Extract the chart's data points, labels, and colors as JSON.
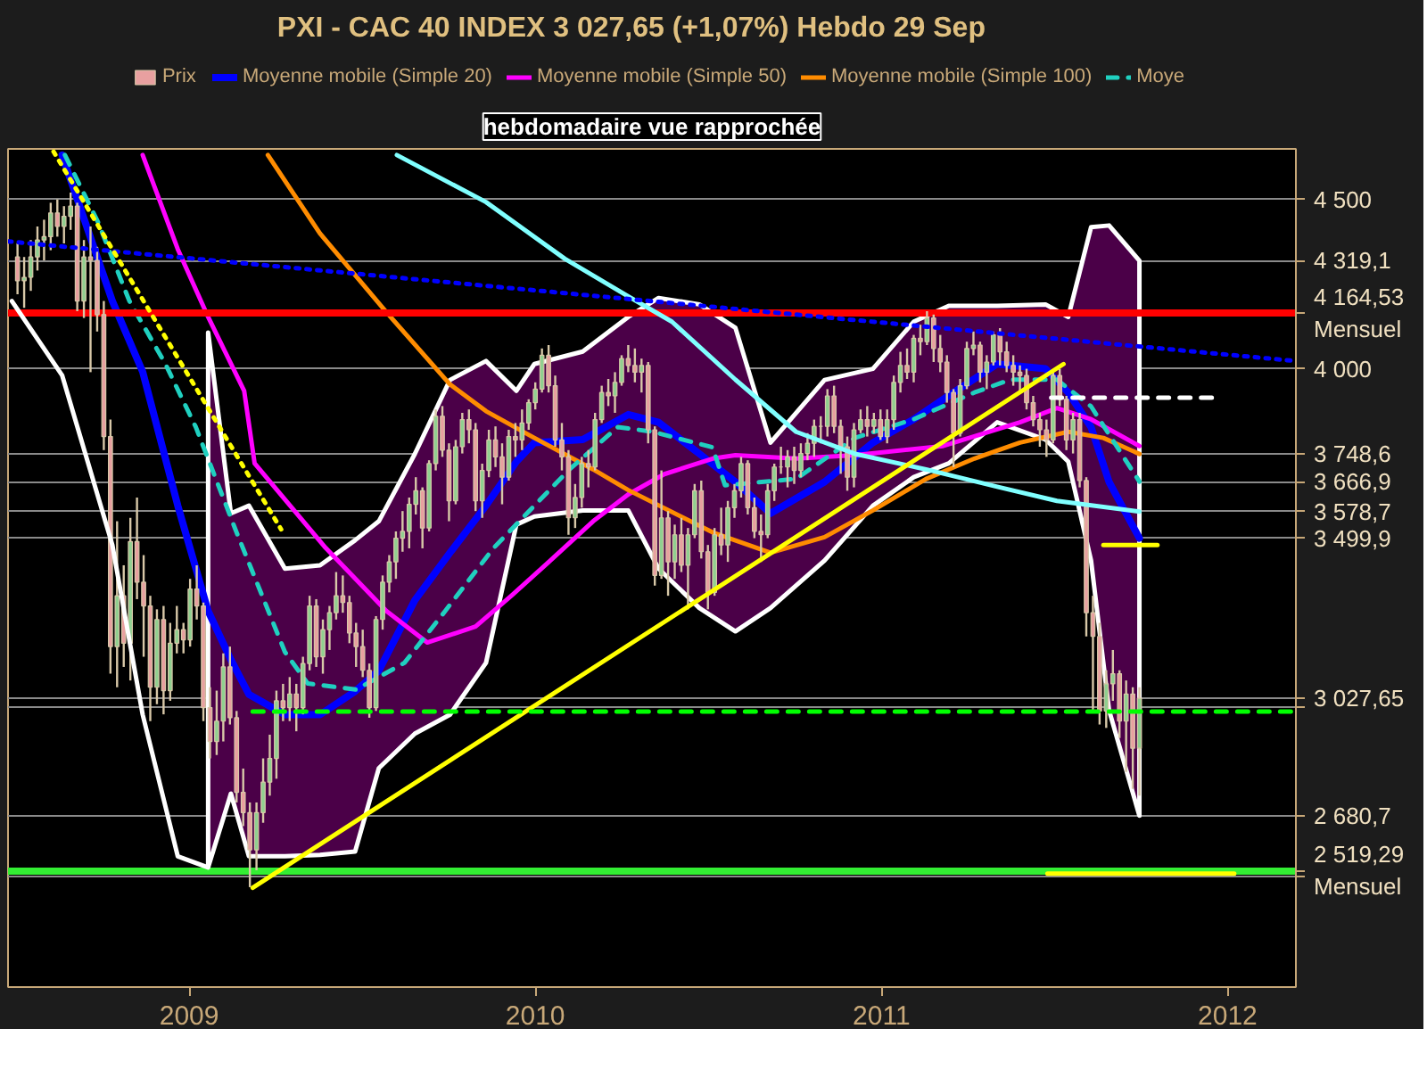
{
  "chart_data": {
    "type": "candlestick",
    "title": "PXI - CAC 40 INDEX    3 027,65 (+1,07%)    Hebdo  29 Sep",
    "annotations": [
      "hebdomadaire vue rapprochée"
    ],
    "xlim": [
      "2008-06-24",
      "2012-03-13"
    ],
    "xticks": [
      "2009",
      "2010",
      "2011",
      "2012"
    ],
    "ylim": [
      2175,
      4649
    ],
    "yticks": [
      {
        "value": 4500,
        "label": "4 500"
      },
      {
        "value": 4319.1,
        "label": "4 319,1"
      },
      {
        "value": 4000,
        "label": "4 000"
      },
      {
        "value": 3748.6,
        "label": "3 748,6"
      },
      {
        "value": 3666.9,
        "label": "3 666,9"
      },
      {
        "value": 3578.7,
        "label": "3 578,7"
      },
      {
        "value": 3500,
        "label": null
      },
      {
        "value": 3499.9,
        "label": "3 499,9"
      },
      {
        "value": 3027.65,
        "label": "3 027,65"
      },
      {
        "value": 3000,
        "label": null
      },
      {
        "value": 2680.7,
        "label": "2 680,7"
      },
      {
        "value": 2500,
        "label": null
      }
    ],
    "grid": "y",
    "legend": "top",
    "ref_lines": [
      {
        "axis": "y",
        "value": 4164.53,
        "label": "4 164,53 Mensuel",
        "color": "#ff0000"
      },
      {
        "axis": "y",
        "value": 2519.29,
        "label": "2 519,29 Mensuel",
        "color": "#33ee33"
      }
    ],
    "series": [
      {
        "name": "Prix",
        "x": [
          "2008-07-04",
          "2008-07-11",
          "2008-07-18",
          "2008-07-25",
          "2008-08-01",
          "2008-08-08",
          "2008-08-15",
          "2008-08-22",
          "2008-08-29",
          "2008-09-05",
          "2008-09-12",
          "2008-09-19",
          "2008-09-26",
          "2008-10-03",
          "2008-10-10",
          "2008-10-17",
          "2008-10-24",
          "2008-10-31",
          "2008-11-07",
          "2008-11-14",
          "2008-11-21",
          "2008-11-28",
          "2008-12-05",
          "2008-12-12",
          "2008-12-19",
          "2008-12-26",
          "2009-01-02",
          "2009-01-09",
          "2009-01-16",
          "2009-01-23",
          "2009-01-30",
          "2009-02-06",
          "2009-02-13",
          "2009-02-20",
          "2009-02-27",
          "2009-03-06",
          "2009-03-13",
          "2009-03-20",
          "2009-03-27",
          "2009-04-03",
          "2009-04-10",
          "2009-04-17",
          "2009-04-24",
          "2009-05-01",
          "2009-05-08",
          "2009-05-15",
          "2009-05-22",
          "2009-05-29",
          "2009-06-05",
          "2009-06-12",
          "2009-06-19",
          "2009-06-26",
          "2009-07-03",
          "2009-07-10",
          "2009-07-17",
          "2009-07-24",
          "2009-07-31",
          "2009-08-07",
          "2009-08-14",
          "2009-08-21",
          "2009-08-28",
          "2009-09-04",
          "2009-09-11",
          "2009-09-18",
          "2009-09-25",
          "2009-10-02",
          "2009-10-09",
          "2009-10-16",
          "2009-10-23",
          "2009-10-30",
          "2009-11-06",
          "2009-11-13",
          "2009-11-20",
          "2009-11-27",
          "2009-12-04",
          "2009-12-11",
          "2009-12-18",
          "2009-12-25",
          "2010-01-01",
          "2010-01-08",
          "2010-01-15",
          "2010-01-22",
          "2010-01-29",
          "2010-02-05",
          "2010-02-12",
          "2010-02-19",
          "2010-02-26",
          "2010-03-05",
          "2010-03-12",
          "2010-03-19",
          "2010-03-26",
          "2010-04-02",
          "2010-04-09",
          "2010-04-16",
          "2010-04-23",
          "2010-04-30",
          "2010-05-07",
          "2010-05-14",
          "2010-05-21",
          "2010-05-28",
          "2010-06-04",
          "2010-06-11",
          "2010-06-18",
          "2010-06-25",
          "2010-07-02",
          "2010-07-09",
          "2010-07-16",
          "2010-07-23",
          "2010-07-30",
          "2010-08-06",
          "2010-08-13",
          "2010-08-20",
          "2010-08-27",
          "2010-09-03",
          "2010-09-10",
          "2010-09-17",
          "2010-09-24",
          "2010-10-01",
          "2010-10-08",
          "2010-10-15",
          "2010-10-22",
          "2010-10-29",
          "2010-11-05",
          "2010-11-12",
          "2010-11-19",
          "2010-11-26",
          "2010-12-03",
          "2010-12-10",
          "2010-12-17",
          "2010-12-24",
          "2010-12-31",
          "2011-01-07",
          "2011-01-14",
          "2011-01-21",
          "2011-01-28",
          "2011-02-04",
          "2011-02-11",
          "2011-02-18",
          "2011-02-25",
          "2011-03-04",
          "2011-03-11",
          "2011-03-18",
          "2011-03-25",
          "2011-04-01",
          "2011-04-08",
          "2011-04-15",
          "2011-04-22",
          "2011-04-29",
          "2011-05-06",
          "2011-05-13",
          "2011-05-20",
          "2011-05-27",
          "2011-06-03",
          "2011-06-10",
          "2011-06-17",
          "2011-06-24",
          "2011-07-01",
          "2011-07-08",
          "2011-07-15",
          "2011-07-22",
          "2011-07-29",
          "2011-08-05",
          "2011-08-12",
          "2011-08-19",
          "2011-08-26",
          "2011-09-02",
          "2011-09-09",
          "2011-09-16",
          "2011-09-23",
          "2011-09-30"
        ],
        "ohlc": [
          [
            4330,
            4370,
            4220,
            4260
          ],
          [
            4260,
            4330,
            4180,
            4270
          ],
          [
            4270,
            4380,
            4230,
            4330
          ],
          [
            4330,
            4420,
            4290,
            4380
          ],
          [
            4380,
            4440,
            4320,
            4390
          ],
          [
            4390,
            4490,
            4350,
            4460
          ],
          [
            4460,
            4500,
            4390,
            4420
          ],
          [
            4420,
            4480,
            4370,
            4450
          ],
          [
            4450,
            4520,
            4410,
            4480
          ],
          [
            4480,
            4490,
            4170,
            4200
          ],
          [
            4200,
            4380,
            4150,
            4330
          ],
          [
            4330,
            4420,
            3990,
            4320
          ],
          [
            4320,
            4360,
            4110,
            4160
          ],
          [
            4160,
            4200,
            3760,
            3800
          ],
          [
            3800,
            3850,
            3100,
            3180
          ],
          [
            3180,
            3550,
            3060,
            3330
          ],
          [
            3330,
            3420,
            3120,
            3190
          ],
          [
            3190,
            3560,
            3080,
            3490
          ],
          [
            3490,
            3620,
            3320,
            3370
          ],
          [
            3370,
            3450,
            3150,
            3300
          ],
          [
            3300,
            3330,
            2960,
            3060
          ],
          [
            3060,
            3290,
            3010,
            3260
          ],
          [
            3260,
            3300,
            2980,
            3050
          ],
          [
            3050,
            3250,
            3020,
            3190
          ],
          [
            3190,
            3300,
            3160,
            3230
          ],
          [
            3230,
            3250,
            3160,
            3200
          ],
          [
            3200,
            3380,
            3180,
            3350
          ],
          [
            3350,
            3420,
            3260,
            3300
          ],
          [
            3300,
            3310,
            2960,
            3000
          ],
          [
            3000,
            3060,
            2850,
            2900
          ],
          [
            2900,
            3050,
            2860,
            2960
          ],
          [
            2960,
            3160,
            2900,
            3120
          ],
          [
            3120,
            3180,
            2950,
            2970
          ],
          [
            2970,
            2990,
            2720,
            2750
          ],
          [
            2750,
            2820,
            2650,
            2690
          ],
          [
            2690,
            2720,
            2470,
            2580
          ],
          [
            2580,
            2720,
            2520,
            2690
          ],
          [
            2690,
            2850,
            2660,
            2780
          ],
          [
            2780,
            2920,
            2740,
            2850
          ],
          [
            2850,
            3050,
            2790,
            3020
          ],
          [
            3020,
            3070,
            2960,
            3000
          ],
          [
            3000,
            3090,
            2960,
            3040
          ],
          [
            3040,
            3070,
            2930,
            3000
          ],
          [
            3000,
            3150,
            2980,
            3130
          ],
          [
            3130,
            3330,
            3110,
            3300
          ],
          [
            3300,
            3320,
            3120,
            3150
          ],
          [
            3150,
            3260,
            3100,
            3230
          ],
          [
            3230,
            3300,
            3170,
            3280
          ],
          [
            3280,
            3400,
            3260,
            3330
          ],
          [
            3330,
            3390,
            3280,
            3310
          ],
          [
            3310,
            3330,
            3190,
            3220
          ],
          [
            3220,
            3250,
            3120,
            3180
          ],
          [
            3180,
            3230,
            3090,
            3110
          ],
          [
            3110,
            3130,
            2970,
            3000
          ],
          [
            3000,
            3270,
            2990,
            3260
          ],
          [
            3260,
            3390,
            3230,
            3370
          ],
          [
            3370,
            3450,
            3340,
            3430
          ],
          [
            3430,
            3520,
            3380,
            3500
          ],
          [
            3500,
            3580,
            3460,
            3520
          ],
          [
            3520,
            3620,
            3470,
            3600
          ],
          [
            3600,
            3680,
            3570,
            3640
          ],
          [
            3640,
            3650,
            3470,
            3530
          ],
          [
            3530,
            3730,
            3520,
            3720
          ],
          [
            3720,
            3880,
            3700,
            3860
          ],
          [
            3860,
            3890,
            3740,
            3760
          ],
          [
            3760,
            3780,
            3550,
            3610
          ],
          [
            3610,
            3790,
            3600,
            3770
          ],
          [
            3770,
            3870,
            3750,
            3850
          ],
          [
            3850,
            3880,
            3780,
            3820
          ],
          [
            3820,
            3840,
            3580,
            3610
          ],
          [
            3610,
            3720,
            3560,
            3700
          ],
          [
            3700,
            3820,
            3680,
            3790
          ],
          [
            3790,
            3830,
            3710,
            3740
          ],
          [
            3740,
            3780,
            3600,
            3680
          ],
          [
            3680,
            3820,
            3670,
            3800
          ],
          [
            3800,
            3840,
            3740,
            3790
          ],
          [
            3790,
            3880,
            3760,
            3840
          ],
          [
            3840,
            3910,
            3820,
            3900
          ],
          [
            3900,
            3960,
            3880,
            3940
          ],
          [
            3940,
            4060,
            3930,
            4040
          ],
          [
            4040,
            4070,
            3930,
            3950
          ],
          [
            3950,
            3980,
            3770,
            3790
          ],
          [
            3790,
            3840,
            3700,
            3740
          ],
          [
            3740,
            3760,
            3510,
            3560
          ],
          [
            3560,
            3660,
            3530,
            3620
          ],
          [
            3620,
            3740,
            3590,
            3720
          ],
          [
            3720,
            3760,
            3650,
            3710
          ],
          [
            3710,
            3870,
            3700,
            3850
          ],
          [
            3850,
            3950,
            3840,
            3930
          ],
          [
            3930,
            3970,
            3890,
            3920
          ],
          [
            3920,
            3990,
            3870,
            3960
          ],
          [
            3960,
            4040,
            3950,
            4030
          ],
          [
            4030,
            4070,
            3990,
            4010
          ],
          [
            4010,
            4060,
            3960,
            3990
          ],
          [
            3990,
            4030,
            3930,
            4010
          ],
          [
            4010,
            4020,
            3780,
            3820
          ],
          [
            3820,
            3830,
            3360,
            3390
          ],
          [
            3390,
            3700,
            3380,
            3560
          ],
          [
            3560,
            3580,
            3330,
            3430
          ],
          [
            3430,
            3540,
            3380,
            3510
          ],
          [
            3510,
            3560,
            3400,
            3420
          ],
          [
            3420,
            3530,
            3290,
            3510
          ],
          [
            3510,
            3660,
            3500,
            3640
          ],
          [
            3640,
            3670,
            3440,
            3460
          ],
          [
            3460,
            3480,
            3290,
            3340
          ],
          [
            3340,
            3530,
            3330,
            3510
          ],
          [
            3510,
            3590,
            3450,
            3480
          ],
          [
            3480,
            3610,
            3430,
            3590
          ],
          [
            3590,
            3660,
            3560,
            3640
          ],
          [
            3640,
            3740,
            3620,
            3720
          ],
          [
            3720,
            3730,
            3570,
            3590
          ],
          [
            3590,
            3620,
            3500,
            3520
          ],
          [
            3520,
            3570,
            3430,
            3510
          ],
          [
            3510,
            3660,
            3500,
            3640
          ],
          [
            3640,
            3720,
            3610,
            3710
          ],
          [
            3710,
            3770,
            3690,
            3710
          ],
          [
            3710,
            3760,
            3650,
            3740
          ],
          [
            3740,
            3770,
            3660,
            3700
          ],
          [
            3700,
            3780,
            3680,
            3750
          ],
          [
            3750,
            3810,
            3730,
            3780
          ],
          [
            3780,
            3850,
            3740,
            3830
          ],
          [
            3830,
            3860,
            3780,
            3830
          ],
          [
            3830,
            3940,
            3800,
            3920
          ],
          [
            3920,
            3950,
            3810,
            3830
          ],
          [
            3830,
            3850,
            3690,
            3770
          ],
          [
            3770,
            3800,
            3640,
            3680
          ],
          [
            3680,
            3840,
            3650,
            3820
          ],
          [
            3820,
            3880,
            3810,
            3850
          ],
          [
            3850,
            3890,
            3800,
            3830
          ],
          [
            3830,
            3870,
            3810,
            3850
          ],
          [
            3850,
            3880,
            3790,
            3800
          ],
          [
            3800,
            3880,
            3780,
            3850
          ],
          [
            3850,
            3980,
            3820,
            3960
          ],
          [
            3960,
            4050,
            3930,
            4010
          ],
          [
            4010,
            4060,
            3970,
            3990
          ],
          [
            3990,
            4100,
            3960,
            4090
          ],
          [
            4090,
            4130,
            4040,
            4080
          ],
          [
            4080,
            4170,
            4070,
            4150
          ],
          [
            4150,
            4160,
            4020,
            4060
          ],
          [
            4060,
            4100,
            3990,
            4020
          ],
          [
            4020,
            4040,
            3900,
            3930
          ],
          [
            3930,
            3940,
            3710,
            3810
          ],
          [
            3810,
            3970,
            3800,
            3950
          ],
          [
            3950,
            4080,
            3940,
            4060
          ],
          [
            4060,
            4110,
            4040,
            4070
          ],
          [
            4070,
            4080,
            3960,
            3990
          ],
          [
            3990,
            4040,
            3940,
            4020
          ],
          [
            4020,
            4110,
            4010,
            4100
          ],
          [
            4100,
            4120,
            4010,
            4050
          ],
          [
            4050,
            4080,
            3990,
            4010
          ],
          [
            4010,
            4040,
            3950,
            3990
          ],
          [
            3990,
            4010,
            3930,
            3980
          ],
          [
            3980,
            4000,
            3880,
            3900
          ],
          [
            3900,
            3920,
            3830,
            3850
          ],
          [
            3850,
            3870,
            3770,
            3820
          ],
          [
            3820,
            3850,
            3740,
            3790
          ],
          [
            3790,
            3990,
            3780,
            3980
          ],
          [
            3980,
            4000,
            3890,
            3910
          ],
          [
            3910,
            3920,
            3760,
            3790
          ],
          [
            3790,
            3870,
            3750,
            3850
          ],
          [
            3850,
            3870,
            3650,
            3670
          ],
          [
            3670,
            3680,
            3210,
            3280
          ],
          [
            3280,
            3330,
            2990,
            3210
          ],
          [
            3210,
            3250,
            2950,
            2990
          ],
          [
            2990,
            3110,
            2940,
            3070
          ],
          [
            3070,
            3170,
            3020,
            3100
          ],
          [
            3100,
            3110,
            2910,
            2960
          ],
          [
            2960,
            3080,
            2810,
            3040
          ],
          [
            3040,
            3060,
            2760,
            2880
          ],
          [
            2880,
            3060,
            2740,
            3027.65
          ]
        ]
      },
      {
        "name": "Moyenne mobile (Simple 20)",
        "type": "line",
        "color": "#0000ff",
        "x": [
          "2008-08-20",
          "2008-10-12",
          "2008-11-13",
          "2008-12-20",
          "2009-01-21",
          "2009-02-14",
          "2009-03-05",
          "2009-04-12",
          "2009-05-19",
          "2009-06-25",
          "2009-07-20",
          "2009-08-27",
          "2009-10-03",
          "2009-11-10",
          "2009-12-12",
          "2009-12-31",
          "2010-02-20",
          "2010-04-09",
          "2010-05-11",
          "2010-06-23",
          "2010-07-31",
          "2010-09-06",
          "2010-11-02",
          "2010-12-23",
          "2011-02-04",
          "2011-03-13",
          "2011-05-03",
          "2011-06-23",
          "2011-07-17",
          "2011-08-10",
          "2011-08-29",
          "2011-09-30"
        ],
        "values": [
          4631,
          4200,
          3991,
          3596,
          3285,
          3141,
          3039,
          2979,
          2979,
          3048,
          3109,
          3317,
          3457,
          3596,
          3726,
          3782,
          3791,
          3865,
          3842,
          3749,
          3666,
          3573,
          3666,
          3782,
          3851,
          3921,
          4014,
          4000,
          3930,
          3828,
          3666,
          3499.9
        ],
        "upper": [
          null,
          null,
          null,
          null,
          4107,
          3573,
          3596,
          3410,
          3420,
          3494,
          3550,
          3749,
          3967,
          4023,
          3935,
          4014,
          4051,
          4153,
          4209,
          4190,
          4121,
          3782,
          3967,
          4000,
          4139,
          4186,
          4186,
          4190,
          4153,
          4418,
          4423,
          4319.1
        ],
        "lower": [
          null,
          null,
          null,
          null,
          2528,
          2746,
          2561,
          2561,
          2565,
          2575,
          2821,
          2923,
          2979,
          3132,
          3540,
          3564,
          3582,
          3582,
          3410,
          3294,
          3225,
          3294,
          3434,
          3596,
          3680,
          3721,
          3842,
          3791,
          3726,
          3434,
          2992,
          2680.7
        ]
      },
      {
        "name": "Moyenne mobile (Simple 50)",
        "type": "line",
        "color": "#ff00ff",
        "x": [
          "2008-11-13",
          "2008-12-20",
          "2009-01-21",
          "2009-02-28",
          "2009-03-11",
          "2009-05-25",
          "2009-07-28",
          "2009-09-09",
          "2009-10-30",
          "2009-12-07",
          "2010-01-13",
          "2010-03-03",
          "2010-04-09",
          "2010-05-17",
          "2010-07-07",
          "2010-07-31",
          "2010-10-03",
          "2010-12-04",
          "2011-03-07",
          "2011-05-27",
          "2011-07-05",
          "2011-08-10",
          "2011-09-30"
        ],
        "values": [
          4631,
          4353,
          4153,
          3935,
          3721,
          3471,
          3285,
          3192,
          3239,
          3331,
          3424,
          3550,
          3629,
          3689,
          3735,
          3745,
          3735,
          3745,
          3772,
          3842,
          3884,
          3851,
          3772
        ]
      },
      {
        "name": "Moyenne mobile (Simple 100)",
        "type": "line",
        "color": "#ff8c00",
        "x": [
          "2009-03-25",
          "2009-05-19",
          "2009-07-28",
          "2009-10-03",
          "2009-11-10",
          "2009-12-31",
          "2010-03-03",
          "2010-04-09",
          "2010-07-07",
          "2010-09-06",
          "2010-11-02",
          "2010-12-23",
          "2011-02-17",
          "2011-04-09",
          "2011-05-27",
          "2011-07-17",
          "2011-08-23",
          "2011-09-30"
        ],
        "values": [
          4631,
          4399,
          4167,
          3954,
          3875,
          3796,
          3703,
          3642,
          3517,
          3457,
          3503,
          3582,
          3675,
          3735,
          3782,
          3814,
          3796,
          3748.6
        ]
      },
      {
        "name": "Moye",
        "type": "line",
        "color": "#20d0c0",
        "line_style": "dashed",
        "x": [
          "2008-08-23",
          "2008-09-27",
          "2008-10-30",
          "2008-12-07",
          "2009-01-08",
          "2009-02-20",
          "2009-04-12",
          "2009-05-06",
          "2009-06-26",
          "2009-08-16",
          "2009-09-28",
          "2009-11-18",
          "2009-12-31",
          "2010-02-06",
          "2010-03-29",
          "2010-05-05",
          "2010-07-07",
          "2010-07-20",
          "2010-10-03",
          "2010-12-04",
          "2011-02-04",
          "2011-04-09",
          "2011-05-17",
          "2011-07-05",
          "2011-08-10",
          "2011-09-30"
        ],
        "values": [
          4631,
          4432,
          4200,
          4014,
          3828,
          3517,
          3164,
          3071,
          3053,
          3132,
          3285,
          3471,
          3596,
          3703,
          3828,
          3814,
          3768,
          3656,
          3675,
          3796,
          3851,
          3930,
          3968,
          3968,
          3889,
          3666.9
        ]
      },
      {
        "type": "line",
        "color": "#80ffff",
        "x": [
          "2009-08-08",
          "2009-11-10",
          "2010-02-01",
          "2010-04-09",
          "2010-05-25",
          "2010-07-31",
          "2010-10-03",
          "2010-12-04",
          "2011-02-17",
          "2011-05-03",
          "2011-07-05",
          "2011-09-30"
        ],
        "values": [
          4631,
          4492,
          4325,
          4214,
          4139,
          3968,
          3814,
          3749,
          3703,
          3652,
          3610,
          3578.7
        ]
      },
      {
        "type": "line",
        "color": "#ffffff",
        "x": [
          "2008-06-28",
          "2008-08-20",
          "2008-10-12",
          "2008-11-13",
          "2008-12-20",
          "2009-01-21"
        ],
        "values": [
          4200,
          3981,
          3480,
          2979,
          2561,
          2528
        ]
      },
      {
        "type": "line",
        "color": "#0000ff",
        "line_style": "dotted",
        "x": [
          "2008-06-24",
          "2012-03-13"
        ],
        "values": [
          4376,
          4023
        ]
      },
      {
        "type": "line",
        "color": "#ffff00",
        "x": [
          "2009-03-09",
          "2011-07-12"
        ],
        "values": [
          2468,
          4014
        ]
      },
      {
        "type": "line",
        "color": "#ffff00",
        "line_style": "dotted",
        "x": [
          "2008-08-11",
          "2009-04-08"
        ],
        "values": [
          4641,
          3526
        ]
      },
      {
        "type": "line",
        "color": "#ffffff",
        "line_style": "dashed",
        "x": [
          "2011-06-29",
          "2011-12-20"
        ],
        "values": [
          3915,
          3915
        ]
      },
      {
        "type": "line",
        "color": "#00ff00",
        "line_style": "dashed",
        "x": [
          "2009-03-09",
          "2012-03-13"
        ],
        "values": [
          2988,
          2988
        ]
      },
      {
        "type": "line",
        "color": "#ffff00",
        "x": [
          "2011-08-23",
          "2011-10-19"
        ],
        "values": [
          3480,
          3480
        ]
      },
      {
        "type": "line",
        "color": "#ffff00",
        "x": [
          "2011-06-25",
          "2012-01-08"
        ],
        "values": [
          2510,
          2510
        ]
      }
    ]
  }
}
